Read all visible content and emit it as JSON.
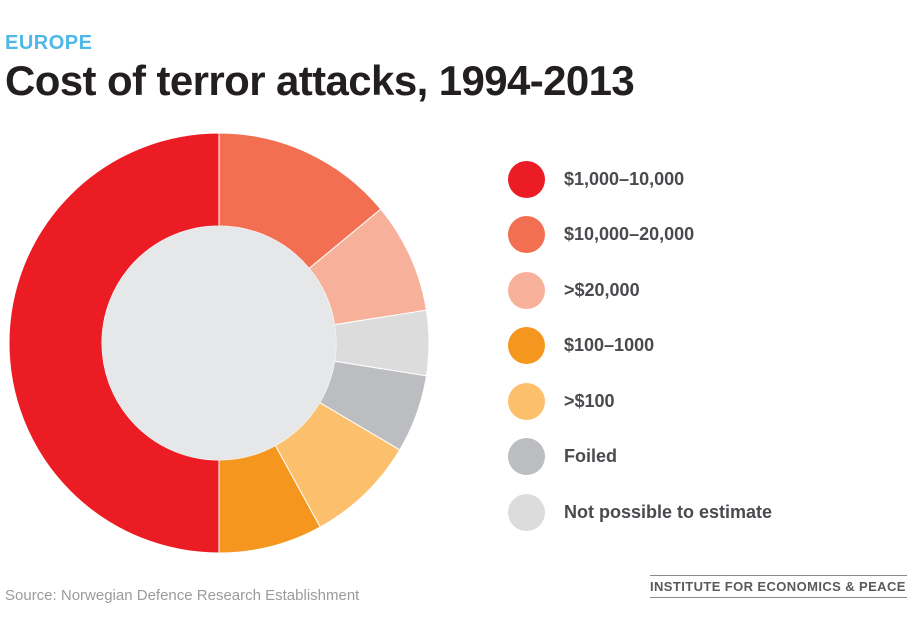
{
  "header": {
    "region": "EUROPE",
    "title": "Cost of terror attacks, 1994-2013"
  },
  "chart_data": {
    "type": "pie",
    "style": "donut",
    "title": "Cost of terror attacks, 1994-2013",
    "subtitle": "EUROPE",
    "slices": [
      {
        "label": "$10,000–20,000",
        "value": 14,
        "color": "#f26f52"
      },
      {
        "label": ">$20,000",
        "value": 8.5,
        "color": "#f7b19b"
      },
      {
        "label": "Not possible to estimate",
        "value": 5,
        "color": "#dcdcdd"
      },
      {
        "label": "Foiled",
        "value": 6,
        "color": "#bcbdc0"
      },
      {
        "label": ">$100",
        "value": 8.5,
        "color": "#fcc06d"
      },
      {
        "label": "$100–1000",
        "value": 8,
        "color": "#f5961f"
      },
      {
        "label": "$1,000–10,000",
        "value": 50,
        "color": "#ec1c24"
      }
    ],
    "legend": [
      {
        "label": "$1,000–10,000",
        "color": "#ec1c24"
      },
      {
        "label": "$10,000–20,000",
        "color": "#f26f52"
      },
      {
        "label": ">$20,000",
        "color": "#f7b19b"
      },
      {
        "label": "$100–1000",
        "color": "#f5961f"
      },
      {
        "label": ">$100",
        "color": "#fcc06d"
      },
      {
        "label": "Foiled",
        "color": "#bcbdc0"
      },
      {
        "label": "Not possible to estimate",
        "color": "#dcdcdd"
      }
    ],
    "legend_position": "right",
    "center_color": "#e6e7e8"
  },
  "footer": {
    "source": "Source: Norwegian Defence Research Establishment",
    "brand": "INSTITUTE FOR ECONOMICS & PEACE"
  }
}
